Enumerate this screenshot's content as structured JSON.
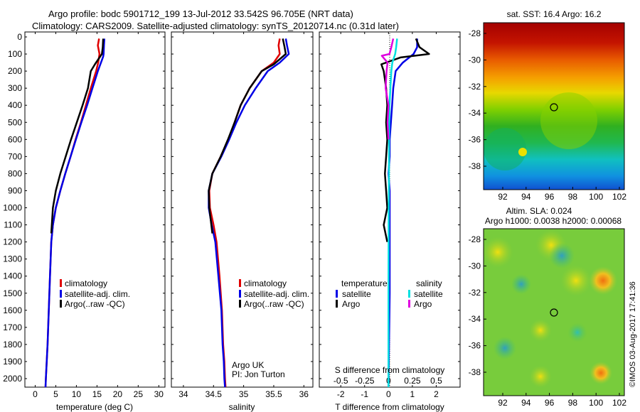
{
  "header": {
    "line1": "Argo profile: bodc 5901712_199 13-Jul-2012 33.542S 96.705E (NRT data)",
    "line2": "Climatology: CARS2009. Satellite-adjusted climatology: synTS_20120714.nc (0.31d later)"
  },
  "side_stamp": "©IMOS 03-Aug-2017 17:41:36",
  "colors": {
    "climatology": "#e00000",
    "satellite": "#0000e6",
    "argo": "#000000",
    "sat_s": "#00e0e0",
    "argo_s": "#e000e0"
  },
  "y_ticks": [
    0,
    100,
    200,
    300,
    400,
    500,
    600,
    700,
    800,
    900,
    1000,
    1100,
    1200,
    1300,
    1400,
    1500,
    1600,
    1700,
    1800,
    1900,
    2000
  ],
  "chart_data": [
    {
      "type": "line",
      "xlabel": "temperature (deg C)",
      "xlim": [
        -2.5,
        31.5
      ],
      "ylim": [
        2050,
        0
      ],
      "x_ticks": [
        0,
        5,
        10,
        15,
        20,
        25,
        30
      ],
      "legend": [
        "climatology",
        "satellite-adj. clim.",
        "Argo(..raw -QC)"
      ],
      "series": [
        {
          "name": "climatology",
          "color": "#e00000",
          "x": [
            15.5,
            15.2,
            15.6,
            15.3,
            14.8,
            13.5,
            12.3,
            11.1,
            9.8,
            8.6,
            7.3,
            6.1,
            5.0,
            4.3,
            3.9,
            3.6,
            3.3,
            3.0,
            2.8,
            2.6,
            2.5
          ],
          "y": [
            10,
            50,
            100,
            150,
            200,
            300,
            400,
            500,
            600,
            700,
            800,
            900,
            1000,
            1100,
            1200,
            1400,
            1600,
            1800,
            1900,
            2000,
            2050
          ]
        },
        {
          "name": "satellite-adj. clim.",
          "color": "#0000e6",
          "x": [
            16.8,
            16.7,
            16.6,
            16.5,
            15.2,
            13.9,
            12.6,
            11.2,
            9.9,
            8.6,
            7.3,
            6.1,
            5.0,
            4.3,
            3.9,
            3.6,
            3.3,
            3.0,
            2.8,
            2.6,
            2.5
          ],
          "y": [
            10,
            50,
            100,
            115,
            200,
            300,
            400,
            500,
            600,
            700,
            800,
            900,
            1000,
            1100,
            1200,
            1400,
            1600,
            1800,
            1900,
            2000,
            2050
          ]
        },
        {
          "name": "Argo(..raw -QC)",
          "color": "#000000",
          "x": [
            16.5,
            16.4,
            16.2,
            14.5,
            13.5,
            12.8,
            11.5,
            10.1,
            8.7,
            7.4,
            6.1,
            5.0,
            4.3,
            3.9
          ],
          "y": [
            10,
            60,
            100,
            160,
            200,
            300,
            400,
            500,
            600,
            700,
            800,
            900,
            1000,
            1150
          ]
        }
      ]
    },
    {
      "type": "line",
      "xlabel": "salinity",
      "xlim": [
        33.8,
        36.15
      ],
      "ylim": [
        2050,
        0
      ],
      "x_ticks": [
        34,
        34.5,
        35,
        35.5,
        36
      ],
      "legend": [
        "climatology",
        "satellite-adj. clim.",
        "Argo(..raw -QC)"
      ],
      "annotation": [
        "Argo UK",
        "PI: Jon Turton"
      ],
      "series": [
        {
          "name": "climatology",
          "color": "#e00000",
          "x": [
            35.6,
            35.58,
            35.6,
            35.5,
            35.3,
            35.1,
            34.95,
            34.85,
            34.75,
            34.62,
            34.48,
            34.43,
            34.44,
            34.5,
            34.55,
            34.6,
            34.64,
            34.66,
            34.68,
            34.69,
            34.7
          ],
          "y": [
            10,
            50,
            100,
            150,
            200,
            300,
            400,
            500,
            600,
            700,
            800,
            900,
            1000,
            1100,
            1200,
            1400,
            1600,
            1800,
            1900,
            2000,
            2050
          ]
        },
        {
          "name": "satellite-adj. clim.",
          "color": "#0000e6",
          "x": [
            35.7,
            35.72,
            35.75,
            35.6,
            35.4,
            35.2,
            35.02,
            34.88,
            34.76,
            34.63,
            34.48,
            34.42,
            34.42,
            34.47,
            34.53,
            34.58,
            34.63,
            34.65,
            34.67,
            34.68,
            34.69
          ],
          "y": [
            10,
            50,
            100,
            150,
            200,
            300,
            400,
            500,
            600,
            700,
            800,
            900,
            1000,
            1100,
            1200,
            1400,
            1600,
            1800,
            1900,
            2000,
            2050
          ]
        },
        {
          "name": "Argo(..raw -QC)",
          "color": "#000000",
          "x": [
            35.65,
            35.68,
            35.7,
            35.5,
            35.3,
            35.1,
            34.95,
            34.85,
            34.74,
            34.62,
            34.48,
            34.42,
            34.43,
            34.48
          ],
          "y": [
            10,
            60,
            100,
            160,
            200,
            300,
            400,
            500,
            600,
            700,
            800,
            900,
            1000,
            1150
          ]
        }
      ]
    },
    {
      "type": "line",
      "xlabel": "T difference from climatology",
      "x2label": "S difference from climatology",
      "xlim": [
        -2.9,
        3.0
      ],
      "x2lim": [
        -0.725,
        0.75
      ],
      "ylim": [
        2050,
        0
      ],
      "x_ticks": [
        -2,
        -1,
        0,
        1,
        2
      ],
      "x2_ticks": [
        -0.5,
        -0.25,
        0,
        0.25,
        0.5
      ],
      "x2_tick_labels": [
        "-0.5",
        "-0.25",
        "0",
        "0.25",
        "0.5"
      ],
      "legend_temperature": {
        "title": "temperature",
        "items": [
          "satellite",
          "Argo"
        ]
      },
      "legend_salinity": {
        "title": "salinity",
        "items": [
          "satellite",
          "Argo"
        ]
      },
      "series": [
        {
          "name": "satellite",
          "color": "#0000e6",
          "x": [
            1.2,
            1.2,
            1.05,
            0.6,
            0.3,
            0.2,
            0.15,
            0.1,
            0.05,
            0.05,
            0.0,
            0.05,
            0.05,
            0.05,
            0.0
          ],
          "y": [
            10,
            60,
            100,
            150,
            200,
            300,
            400,
            500,
            600,
            700,
            800,
            900,
            1000,
            1500,
            2050
          ]
        },
        {
          "name": "Argo",
          "color": "#000000",
          "x": [
            1.15,
            1.3,
            1.7,
            0.5,
            -0.3,
            -0.2,
            -0.1,
            -0.05,
            -0.1,
            -0.05,
            -0.1,
            -0.15,
            -0.1,
            -0.05,
            -0.2,
            -0.05
          ],
          "y": [
            10,
            60,
            100,
            120,
            160,
            200,
            300,
            400,
            500,
            600,
            700,
            800,
            900,
            1000,
            1100,
            1200
          ]
        },
        {
          "name": "satellite",
          "color": "#00e0e0",
          "x": [
            0.09,
            0.08,
            0.07,
            0.04,
            0.03,
            0.02,
            0.01,
            0.005,
            0.005,
            0.002,
            0.0,
            0.0
          ],
          "y": [
            10,
            60,
            100,
            150,
            200,
            300,
            400,
            600,
            800,
            1000,
            1500,
            2050
          ]
        },
        {
          "name": "Argo",
          "color": "#e000e0",
          "x": [
            0.05,
            0.03,
            0.01,
            -0.07,
            -0.01,
            -0.02,
            -0.03,
            0.0,
            -0.01,
            0.0
          ],
          "y": [
            10,
            60,
            100,
            110,
            150,
            200,
            300,
            400,
            500,
            600
          ]
        }
      ]
    }
  ],
  "map_sst": {
    "title": "sat. SST: 16.4  Argo: 16.2",
    "y_ticks": [
      "-28",
      "-30",
      "-32",
      "-34",
      "-36",
      "-38"
    ],
    "x_ticks": [
      "92",
      "94",
      "96",
      "98",
      "100",
      "102"
    ]
  },
  "map_sla": {
    "title1": "Altim. SLA: 0.024",
    "title2": "Argo h1000: 0.0038 h2000: 0.00068",
    "y_ticks": [
      "-28",
      "-30",
      "-32",
      "-34",
      "-36",
      "-38"
    ],
    "x_ticks": [
      "92",
      "94",
      "96",
      "98",
      "100",
      "102"
    ]
  }
}
